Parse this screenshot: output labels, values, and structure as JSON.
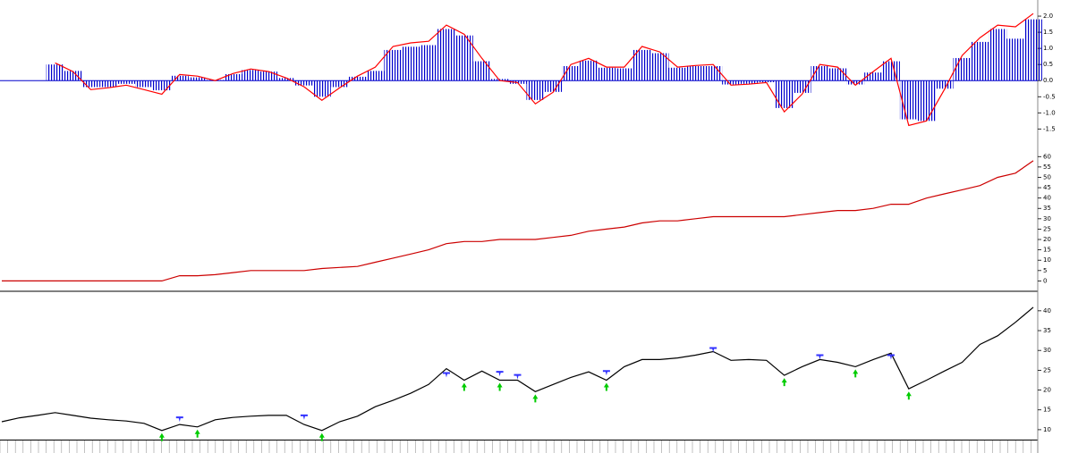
{
  "chart_data": [
    {
      "type": "bar",
      "ylim": [
        -2.1,
        2.5
      ],
      "yticks": [
        {
          "value": 2,
          "label": "2.0"
        },
        1.5,
        {
          "value": 1,
          "label": "1.0"
        },
        0.5,
        {
          "value": 0,
          "label": "0.0"
        },
        -0.5,
        {
          "value": -1,
          "label": "-1.0"
        },
        -1.5
      ],
      "series": [
        {
          "type": "bar",
          "color": "#0000cc",
          "values": [
            null,
            null,
            null,
            0.5,
            0.3,
            -0.2,
            -0.2,
            -0.1,
            -0.2,
            -0.3,
            0.15,
            0.1,
            0.02,
            0.2,
            0.33,
            0.28,
            0.08,
            -0.15,
            -0.5,
            -0.2,
            0.12,
            0.3,
            0.95,
            1.05,
            1.1,
            1.6,
            1.4,
            0.6,
            0.05,
            -0.1,
            -0.6,
            -0.35,
            0.45,
            0.62,
            0.4,
            0.38,
            0.95,
            0.85,
            0.4,
            0.45,
            0.45,
            -0.12,
            -0.1,
            -0.05,
            -0.85,
            -0.38,
            0.45,
            0.38,
            -0.12,
            0.25,
            0.6,
            -1.2,
            -1.25,
            -0.25,
            0.7,
            1.2,
            1.6,
            1.3,
            1.9
          ]
        },
        {
          "type": "line",
          "color": "#ff0000",
          "values": [
            null,
            null,
            null,
            0.55,
            0.28,
            -0.28,
            -0.22,
            -0.14,
            -0.28,
            -0.42,
            0.19,
            0.14,
            0,
            0.22,
            0.36,
            0.28,
            0.08,
            -0.19,
            -0.61,
            -0.22,
            0.14,
            0.42,
            1.06,
            1.17,
            1.22,
            1.72,
            1.44,
            0.69,
            0,
            -0.06,
            -0.72,
            -0.36,
            0.5,
            0.69,
            0.42,
            0.42,
            1.06,
            0.89,
            0.42,
            0.47,
            0.5,
            -0.14,
            -0.11,
            -0.06,
            -0.97,
            -0.42,
            0.5,
            0.42,
            -0.14,
            0.28,
            0.69,
            -1.39,
            -1.25,
            -0.28,
            0.78,
            1.33,
            1.72,
            1.67,
            2.08
          ]
        }
      ]
    },
    {
      "type": "line",
      "ylim": [
        -5,
        64
      ],
      "yticks": [
        0,
        5,
        10,
        15,
        20,
        25,
        30,
        35,
        40,
        45,
        50,
        55,
        60
      ],
      "series": [
        {
          "type": "line",
          "color": "#cc0000",
          "values": [
            0,
            0,
            0,
            0,
            0,
            0,
            0,
            0,
            0,
            0,
            2.5,
            2.5,
            3,
            4,
            5,
            5,
            5,
            5,
            6,
            6.5,
            7,
            9,
            11,
            13,
            15,
            18,
            19,
            19,
            20,
            20,
            20,
            21,
            22,
            24,
            25,
            26,
            28,
            29,
            29,
            30,
            31,
            31,
            31,
            31,
            31,
            32,
            33,
            34,
            34,
            35,
            37,
            37,
            40,
            42,
            44,
            46,
            50,
            52,
            58
          ]
        }
      ]
    },
    {
      "type": "line",
      "ylim": [
        7.5,
        44.7
      ],
      "yticks": [
        10,
        15,
        20,
        25,
        30,
        35,
        40
      ],
      "series": [
        {
          "type": "line",
          "color": "#000000",
          "values": [
            12,
            13,
            13.6,
            14.3,
            13.6,
            12.9,
            12.5,
            12.2,
            11.6,
            9.8,
            11.3,
            10.7,
            12.5,
            13.1,
            13.4,
            13.6,
            13.6,
            11.3,
            9.8,
            12,
            13.4,
            15.8,
            17.4,
            19.2,
            21.4,
            25.4,
            22.5,
            24.8,
            22.5,
            22.5,
            19.6,
            21.4,
            23.2,
            24.6,
            22.5,
            25.9,
            27.7,
            27.7,
            28.1,
            28.8,
            29.7,
            27.5,
            27.7,
            27.5,
            23.7,
            25.9,
            27.7,
            27,
            25.9,
            27.7,
            29.3,
            20.3,
            22.5,
            24.8,
            27,
            31.5,
            33.7,
            37.1,
            40.9
          ]
        },
        {
          "type": "marker",
          "marker": "up",
          "color": "#00cc00",
          "values": [
            null,
            null,
            null,
            null,
            null,
            null,
            null,
            null,
            null,
            9.8,
            null,
            10.7,
            null,
            null,
            null,
            null,
            null,
            null,
            9.8,
            null,
            null,
            null,
            null,
            null,
            null,
            null,
            22.5,
            null,
            22.5,
            null,
            19.6,
            null,
            null,
            null,
            22.5,
            null,
            null,
            null,
            null,
            null,
            null,
            null,
            null,
            null,
            23.7,
            null,
            null,
            null,
            25.9,
            null,
            null,
            20.3,
            null,
            null,
            null,
            null,
            null,
            null,
            null
          ]
        },
        {
          "type": "marker",
          "marker": "down",
          "color": "#3333ff",
          "values": [
            null,
            null,
            null,
            null,
            null,
            null,
            null,
            null,
            null,
            null,
            11.3,
            null,
            null,
            null,
            null,
            null,
            null,
            11.8,
            null,
            null,
            null,
            null,
            null,
            null,
            null,
            22.5,
            null,
            null,
            22.8,
            22,
            null,
            null,
            null,
            null,
            23,
            null,
            null,
            null,
            null,
            null,
            28.8,
            null,
            null,
            null,
            null,
            null,
            27,
            null,
            null,
            null,
            27,
            null,
            null,
            null,
            null,
            null,
            null,
            null,
            null
          ]
        }
      ]
    }
  ]
}
